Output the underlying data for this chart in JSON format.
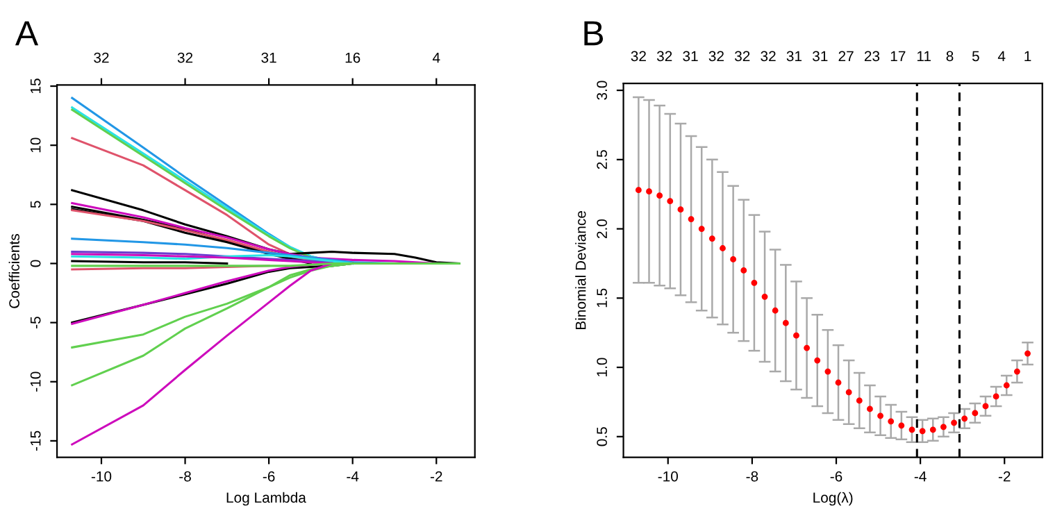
{
  "chart_data": [
    {
      "type": "line",
      "title": "A",
      "xlabel": "Log Lambda",
      "ylabel": "Coefficients",
      "marker": "none",
      "line_style": "solid",
      "legend": false,
      "grid": false,
      "x": [
        -10.7,
        -9,
        -8,
        -7,
        -6,
        -5.5,
        -5,
        -4.5,
        -4,
        -3,
        -2.5,
        -2,
        -1.45
      ],
      "xlim": [
        -11.06,
        -1.08
      ],
      "xticks": [
        -10,
        -8,
        -6,
        -4,
        -2
      ],
      "ylim": [
        -16.4,
        15.1
      ],
      "yticks": [
        -15,
        -10,
        -5,
        0,
        5,
        10,
        15
      ],
      "annotations": [
        "32",
        "32",
        "31",
        "16",
        "4"
      ],
      "series": [
        {
          "color": "#2297e6",
          "values": [
            14,
            9.8,
            7.3,
            4.9,
            2.5,
            1.4,
            0.6,
            0.2,
            0,
            null,
            null,
            null,
            null
          ]
        },
        {
          "color": "#28e2e5",
          "values": [
            13.2,
            9.3,
            7.0,
            4.7,
            2.4,
            1.4,
            0.6,
            0.2,
            0,
            null,
            null,
            null,
            null
          ]
        },
        {
          "color": "#61d04f",
          "values": [
            13.0,
            9.1,
            6.8,
            4.5,
            2.3,
            1.3,
            0.5,
            0.1,
            0,
            null,
            null,
            null,
            null
          ]
        },
        {
          "color": "#df536b",
          "values": [
            10.6,
            8.3,
            6.2,
            4.1,
            1.6,
            0.8,
            0.3,
            0.1,
            0,
            null,
            null,
            null,
            null
          ]
        },
        {
          "color": "#000000",
          "values": [
            6.2,
            4.5,
            3.3,
            2.3,
            1.2,
            0.8,
            0.9,
            1.0,
            0.9,
            0.8,
            0.5,
            0.1,
            0
          ]
        },
        {
          "color": "#000000",
          "values": [
            4.8,
            3.7,
            2.9,
            1.9,
            0.9,
            0.5,
            0.2,
            0,
            null,
            null,
            null,
            null,
            null
          ]
        },
        {
          "color": "#000000",
          "values": [
            4.6,
            3.6,
            2.6,
            1.8,
            0.8,
            0.4,
            0,
            null,
            null,
            null,
            null,
            null,
            null
          ]
        },
        {
          "color": "#cd0bbc",
          "values": [
            5.1,
            3.9,
            3.0,
            2.2,
            1.2,
            0.8,
            0.5,
            0.4,
            0.3,
            0.2,
            0.1,
            0,
            null
          ]
        },
        {
          "color": "#df536b",
          "values": [
            4.5,
            3.6,
            2.8,
            2.0,
            1.0,
            0.6,
            0.3,
            0.1,
            0,
            null,
            null,
            null,
            null
          ]
        },
        {
          "color": "#2297e6",
          "values": [
            2.1,
            1.8,
            1.6,
            1.3,
            0.9,
            0.7,
            0.5,
            0.3,
            0.1,
            0,
            null,
            null,
            null
          ]
        },
        {
          "color": "#6a3dcf",
          "values": [
            1.0,
            0.9,
            0.8,
            0.6,
            0.4,
            0.3,
            0.2,
            0.1,
            0,
            null,
            null,
            null,
            null
          ]
        },
        {
          "color": "#28e2e5",
          "values": [
            0.6,
            0.5,
            0.4,
            0.6,
            0.7,
            0.6,
            0.4,
            0.2,
            0,
            null,
            null,
            null,
            null
          ]
        },
        {
          "color": "#cd0bbc",
          "values": [
            0.8,
            0.7,
            0.6,
            0.5,
            0.3,
            0.2,
            0.1,
            0,
            null,
            null,
            null,
            null,
            null
          ]
        },
        {
          "color": "#000000",
          "values": [
            0.2,
            0.1,
            0.1,
            0,
            null,
            null,
            null,
            null,
            null,
            null,
            null,
            null,
            null
          ]
        },
        {
          "color": "#df536b",
          "values": [
            -0.5,
            -0.4,
            -0.4,
            -0.3,
            -0.2,
            null,
            null,
            null,
            null,
            null,
            null,
            null,
            null
          ]
        },
        {
          "color": "#000000",
          "values": [
            -5.0,
            -3.5,
            -2.6,
            -1.7,
            -0.7,
            -0.4,
            -0.3,
            -0.2,
            0,
            null,
            null,
            null,
            null
          ]
        },
        {
          "color": "#cd0bbc",
          "values": [
            -5.1,
            -3.5,
            -2.5,
            -1.5,
            -0.6,
            -0.3,
            -0.1,
            0,
            null,
            null,
            null,
            null,
            null
          ]
        },
        {
          "color": "#61d04f",
          "values": [
            -7.1,
            -6.0,
            -4.5,
            -3.4,
            -2.0,
            -1.2,
            -0.6,
            -0.2,
            0,
            null,
            null,
            null,
            null
          ]
        },
        {
          "color": "#61d04f",
          "values": [
            -10.3,
            -7.8,
            -5.5,
            -3.8,
            -2.0,
            -1.0,
            -0.5,
            -0.2,
            0,
            null,
            null,
            null,
            null
          ]
        },
        {
          "color": "#cd0bbc",
          "values": [
            -15.3,
            -12.0,
            -9.0,
            -6.1,
            -3.3,
            -1.9,
            -0.6,
            0,
            null,
            null,
            null,
            null,
            null
          ]
        },
        {
          "color": "#61d04f",
          "values": [
            -0.2,
            -0.2,
            -0.2,
            -0.2,
            -0.2,
            -0.2,
            -0.1,
            0,
            0,
            0,
            0,
            0,
            0
          ]
        }
      ]
    },
    {
      "type": "scatter",
      "title": "B",
      "xlabel": "Log(λ)",
      "ylabel": "Binomial Deviance",
      "marker": "circle",
      "legend": false,
      "grid": false,
      "xlim": [
        -11.06,
        -1.1
      ],
      "xticks": [
        -10,
        -8,
        -6,
        -4,
        -2
      ],
      "ylim": [
        0.35,
        3.05
      ],
      "yticks": [
        0.5,
        {
          "value": 1.0,
          "label": "1.0"
        },
        1.5,
        {
          "value": 2.0,
          "label": "2.0"
        },
        2.5,
        {
          "value": 3.0,
          "label": "3.0"
        }
      ],
      "annotations": [
        "32",
        "32",
        "31",
        "32",
        "32",
        "32",
        "31",
        "31",
        "27",
        "23",
        "17",
        "11",
        "8",
        "5",
        "4",
        "1"
      ],
      "ref_lines": [
        {
          "axis": "x",
          "value": -4.08,
          "color": "#000000",
          "line_style": "dashed"
        },
        {
          "axis": "x",
          "value": -3.07,
          "color": "#000000",
          "line_style": "dashed"
        }
      ],
      "x": [
        -10.7,
        -10.45,
        -10.2,
        -9.95,
        -9.7,
        -9.45,
        -9.2,
        -8.95,
        -8.7,
        -8.45,
        -8.2,
        -7.95,
        -7.7,
        -7.45,
        -7.2,
        -6.95,
        -6.7,
        -6.45,
        -6.2,
        -5.95,
        -5.7,
        -5.45,
        -5.2,
        -4.95,
        -4.7,
        -4.45,
        -4.2,
        -3.95,
        -3.7,
        -3.45,
        -3.2,
        -2.95,
        -2.7,
        -2.45,
        -2.2,
        -1.95,
        -1.7,
        -1.45
      ],
      "series": [
        {
          "color": "#ff0000",
          "values": [
            2.28,
            2.27,
            2.24,
            2.2,
            2.14,
            2.07,
            2.0,
            1.93,
            1.86,
            1.78,
            1.7,
            1.61,
            1.51,
            1.41,
            1.32,
            1.23,
            1.14,
            1.05,
            0.97,
            0.89,
            0.82,
            0.76,
            0.7,
            0.65,
            0.61,
            0.58,
            0.55,
            0.54,
            0.55,
            0.57,
            0.6,
            0.63,
            0.67,
            0.72,
            0.79,
            0.87,
            0.97,
            1.1
          ],
          "errors": [
            0.67,
            0.66,
            0.65,
            0.63,
            0.62,
            0.6,
            0.59,
            0.57,
            0.55,
            0.53,
            0.51,
            0.49,
            0.47,
            0.44,
            0.42,
            0.39,
            0.36,
            0.33,
            0.3,
            0.27,
            0.23,
            0.2,
            0.17,
            0.14,
            0.12,
            0.1,
            0.09,
            0.08,
            0.08,
            0.07,
            0.07,
            0.07,
            0.07,
            0.07,
            0.07,
            0.07,
            0.08,
            0.08
          ]
        }
      ]
    }
  ]
}
